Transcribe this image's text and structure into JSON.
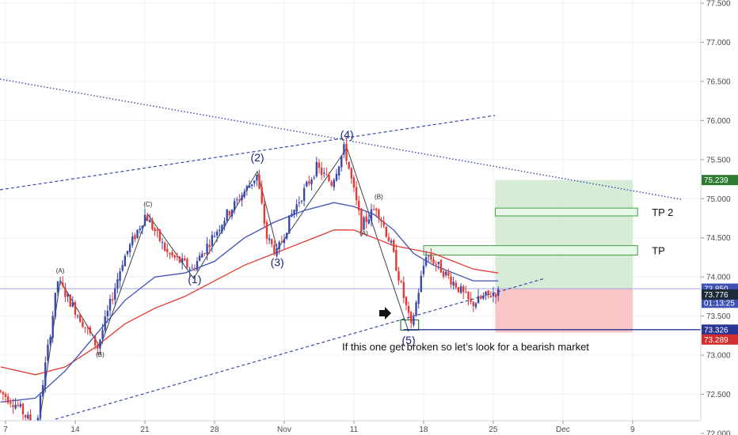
{
  "chart_data": {
    "type": "candlestick",
    "ylim": [
      71.9,
      77.6
    ],
    "y_ticks": [
      {
        "value": 77.5,
        "label": "77.500"
      },
      {
        "value": 77.0,
        "label": "77.000"
      },
      {
        "value": 76.5,
        "label": "76.500"
      },
      {
        "value": 76.0,
        "label": "76.000"
      },
      {
        "value": 75.5,
        "label": "75.500"
      },
      {
        "value": 75.0,
        "label": "75.000"
      },
      {
        "value": 74.5,
        "label": "74.500"
      },
      {
        "value": 74.0,
        "label": "74.000"
      },
      {
        "value": 73.5,
        "label": "73.500"
      },
      {
        "value": 73.0,
        "label": "73.000"
      },
      {
        "value": 72.5,
        "label": "72.500"
      },
      {
        "value": 72.0,
        "label": "72.000"
      }
    ],
    "x_ticks": [
      {
        "day": 7,
        "label": "7"
      },
      {
        "day": 14,
        "label": "14"
      },
      {
        "day": 21,
        "label": "21"
      },
      {
        "day": 28,
        "label": "28"
      },
      {
        "day": 35,
        "label": "Nov"
      },
      {
        "day": 42,
        "label": "11"
      },
      {
        "day": 49,
        "label": "18"
      },
      {
        "day": 56,
        "label": "25"
      },
      {
        "day": 63,
        "label": "Dec"
      },
      {
        "day": 70,
        "label": "9"
      }
    ],
    "price_path": [
      [
        6.5,
        72.55
      ],
      [
        8.5,
        72.35
      ],
      [
        10.3,
        72.05
      ],
      [
        12.5,
        73.95
      ],
      [
        16.5,
        73.1
      ],
      [
        19.0,
        74.2
      ],
      [
        21.3,
        74.8
      ],
      [
        23.5,
        74.3
      ],
      [
        26.0,
        74.1
      ],
      [
        29.5,
        74.8
      ],
      [
        32.5,
        75.3
      ],
      [
        33.5,
        74.5
      ],
      [
        34.5,
        74.3
      ],
      [
        36.0,
        74.8
      ],
      [
        38.5,
        75.4
      ],
      [
        40.0,
        75.2
      ],
      [
        41.3,
        75.65
      ],
      [
        43.0,
        74.65
      ],
      [
        44.5,
        74.9
      ],
      [
        46.0,
        74.4
      ],
      [
        48.0,
        73.35
      ],
      [
        49.5,
        74.3
      ],
      [
        51.0,
        74.1
      ],
      [
        52.5,
        73.9
      ],
      [
        54.0,
        73.65
      ],
      [
        55.5,
        73.75
      ],
      [
        56.5,
        73.8
      ]
    ],
    "ma_blue": [
      [
        6.5,
        72.4
      ],
      [
        10,
        72.45
      ],
      [
        13,
        72.8
      ],
      [
        16,
        73.25
      ],
      [
        19,
        73.7
      ],
      [
        22,
        74.0
      ],
      [
        25,
        74.05
      ],
      [
        28,
        74.2
      ],
      [
        31,
        74.5
      ],
      [
        34,
        74.7
      ],
      [
        37,
        74.85
      ],
      [
        40,
        74.95
      ],
      [
        42,
        74.9
      ],
      [
        44,
        74.8
      ],
      [
        46,
        74.6
      ],
      [
        48,
        74.3
      ],
      [
        50,
        74.15
      ],
      [
        52,
        74.05
      ],
      [
        54,
        73.95
      ],
      [
        56.5,
        73.95
      ]
    ],
    "ma_red": [
      [
        6.5,
        72.85
      ],
      [
        10,
        72.75
      ],
      [
        13,
        72.85
      ],
      [
        16,
        73.1
      ],
      [
        19,
        73.4
      ],
      [
        22,
        73.6
      ],
      [
        25,
        73.75
      ],
      [
        28,
        73.95
      ],
      [
        31,
        74.15
      ],
      [
        34,
        74.3
      ],
      [
        37,
        74.45
      ],
      [
        40,
        74.6
      ],
      [
        42,
        74.6
      ],
      [
        44,
        74.5
      ],
      [
        46,
        74.4
      ],
      [
        48,
        74.35
      ],
      [
        50,
        74.3
      ],
      [
        52,
        74.2
      ],
      [
        54,
        74.1
      ],
      [
        56.5,
        74.05
      ]
    ],
    "current_price_line": 73.85,
    "support_line": 73.326,
    "trade": {
      "entry": 73.85,
      "take_profit": 75.239,
      "stop_loss": 73.289,
      "day_start": 56.2,
      "day_end": 70.0
    },
    "tp_zones": [
      {
        "label": "TP 2",
        "low": 74.78,
        "high": 74.88,
        "day_start": 56.2,
        "day_end": 70.5
      },
      {
        "label": "TP",
        "low": 74.28,
        "high": 74.4,
        "day_start": 49.0,
        "day_end": 70.5
      }
    ],
    "demand_box": {
      "low": 73.32,
      "high": 73.45,
      "day_start": 46.7,
      "day_end": 48.5
    },
    "price_badges": [
      {
        "value": 75.239,
        "label": "75.239",
        "color": "#2e7d32"
      },
      {
        "value": 73.85,
        "label": "73.850",
        "color": "#3f51b5"
      },
      {
        "value": 73.67,
        "label": "01:13:25",
        "color": "#3f51b5"
      },
      {
        "value": 73.776,
        "label": "73.776",
        "color": "#1c2a3a"
      },
      {
        "value": 73.326,
        "label": "73.326",
        "color": "#283593"
      },
      {
        "value": 73.2,
        "label": "73.289",
        "color": "#d32f2f"
      }
    ],
    "wave_labels": [
      {
        "text": "(1)",
        "day": 26.0,
        "price": 73.92,
        "major": true
      },
      {
        "text": "(2)",
        "day": 32.3,
        "price": 75.48,
        "major": true
      },
      {
        "text": "(3)",
        "day": 34.3,
        "price": 74.14,
        "major": true
      },
      {
        "text": "(4)",
        "day": 41.3,
        "price": 75.77,
        "major": true
      },
      {
        "text": "(5)",
        "day": 47.5,
        "price": 73.14,
        "major": true
      },
      {
        "text": "(A)",
        "day": 12.5,
        "price": 74.05,
        "major": false
      },
      {
        "text": "(B)",
        "day": 16.5,
        "price": 72.98,
        "major": false
      },
      {
        "text": "(C)",
        "day": 21.3,
        "price": 74.9,
        "major": false
      },
      {
        "text": "(A)",
        "day": 43.0,
        "price": 74.53,
        "major": false
      },
      {
        "text": "(B)",
        "day": 44.5,
        "price": 75.0,
        "major": false
      }
    ],
    "annotation": "If this one get broken so let’s look for a bearish market",
    "colors": {
      "up": "#3949ab",
      "down": "#e53935",
      "ma_blue": "#3f51b5",
      "ma_red": "#e53935",
      "trend": "#3949ab",
      "profit": "#c8e6c9",
      "loss": "#f8bbbb"
    }
  }
}
